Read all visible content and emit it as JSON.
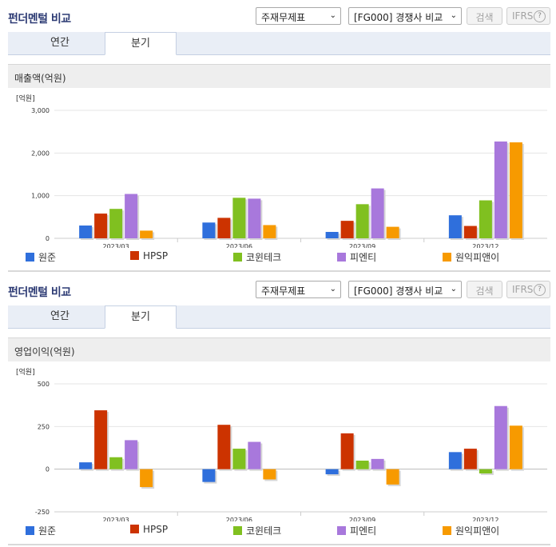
{
  "panels": [
    {
      "title": "펀더멘털 비교",
      "select_statement": "주재무제표",
      "select_compare": "[FG000] 경쟁사 비교",
      "search_label": "검색",
      "ifrs_label": "IFRS",
      "help_label": "?",
      "tabs": [
        "연간",
        "분기"
      ],
      "subtitle": "매출액(억원)",
      "unit": "[억원]",
      "chart_data": {
        "type": "bar",
        "categories": [
          "2023/03",
          "2023/06",
          "2023/09",
          "2023/12"
        ],
        "ylim": [
          0,
          3000
        ],
        "yticks": [
          "0",
          "1,000",
          "2,000",
          "3,000"
        ],
        "ytick_values": [
          0,
          1000,
          2000,
          3000
        ],
        "series": [
          {
            "name": "원준",
            "color": "#2f6fdc",
            "values": [
              300,
              370,
              150,
              540
            ]
          },
          {
            "name": "HPSP",
            "color": "#cc3300",
            "values": [
              580,
              480,
              410,
              290
            ]
          },
          {
            "name": "코윈테크",
            "color": "#80c020",
            "values": [
              690,
              950,
              800,
              890
            ]
          },
          {
            "name": "피엔티",
            "color": "#a878dc",
            "values": [
              1040,
              930,
              1170,
              2270
            ]
          },
          {
            "name": "원익피앤이",
            "color": "#f79a00",
            "values": [
              180,
              310,
              270,
              2250
            ]
          }
        ]
      }
    },
    {
      "title": "펀더멘털 비교",
      "select_statement": "주재무제표",
      "select_compare": "[FG000] 경쟁사 비교",
      "search_label": "검색",
      "ifrs_label": "IFRS",
      "help_label": "?",
      "tabs": [
        "연간",
        "분기"
      ],
      "subtitle": "영업이익(억원)",
      "unit": "[억원]",
      "chart_data": {
        "type": "bar",
        "categories": [
          "2023/03",
          "2023/06",
          "2023/09",
          "2023/12"
        ],
        "ylim": [
          -250,
          500
        ],
        "yticks": [
          "-250",
          "0",
          "250",
          "500"
        ],
        "ytick_values": [
          -250,
          0,
          250,
          500
        ],
        "series": [
          {
            "name": "원준",
            "color": "#2f6fdc",
            "values": [
              40,
              -75,
              -30,
              100
            ]
          },
          {
            "name": "HPSP",
            "color": "#cc3300",
            "values": [
              345,
              260,
              210,
              120
            ]
          },
          {
            "name": "코윈테크",
            "color": "#80c020",
            "values": [
              70,
              120,
              50,
              -25
            ]
          },
          {
            "name": "피엔티",
            "color": "#a878dc",
            "values": [
              170,
              160,
              60,
              370
            ]
          },
          {
            "name": "원익피앤이",
            "color": "#f79a00",
            "values": [
              -105,
              -60,
              -90,
              255
            ]
          }
        ]
      }
    }
  ]
}
